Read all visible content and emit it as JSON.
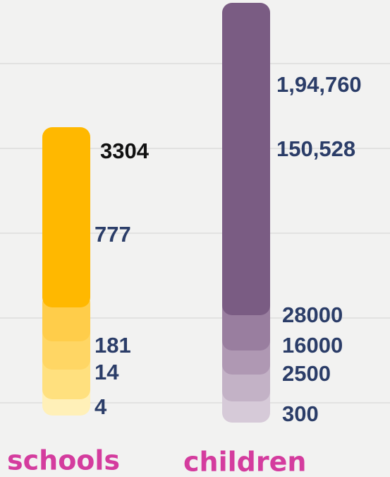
{
  "schools": {
    "label": "schools",
    "items": [
      "3304",
      "777",
      "181",
      "14",
      "4"
    ]
  },
  "children": {
    "label": "children",
    "items": [
      "1,94,760",
      "150,528",
      "28000",
      "16000",
      "2500",
      "300"
    ]
  }
}
